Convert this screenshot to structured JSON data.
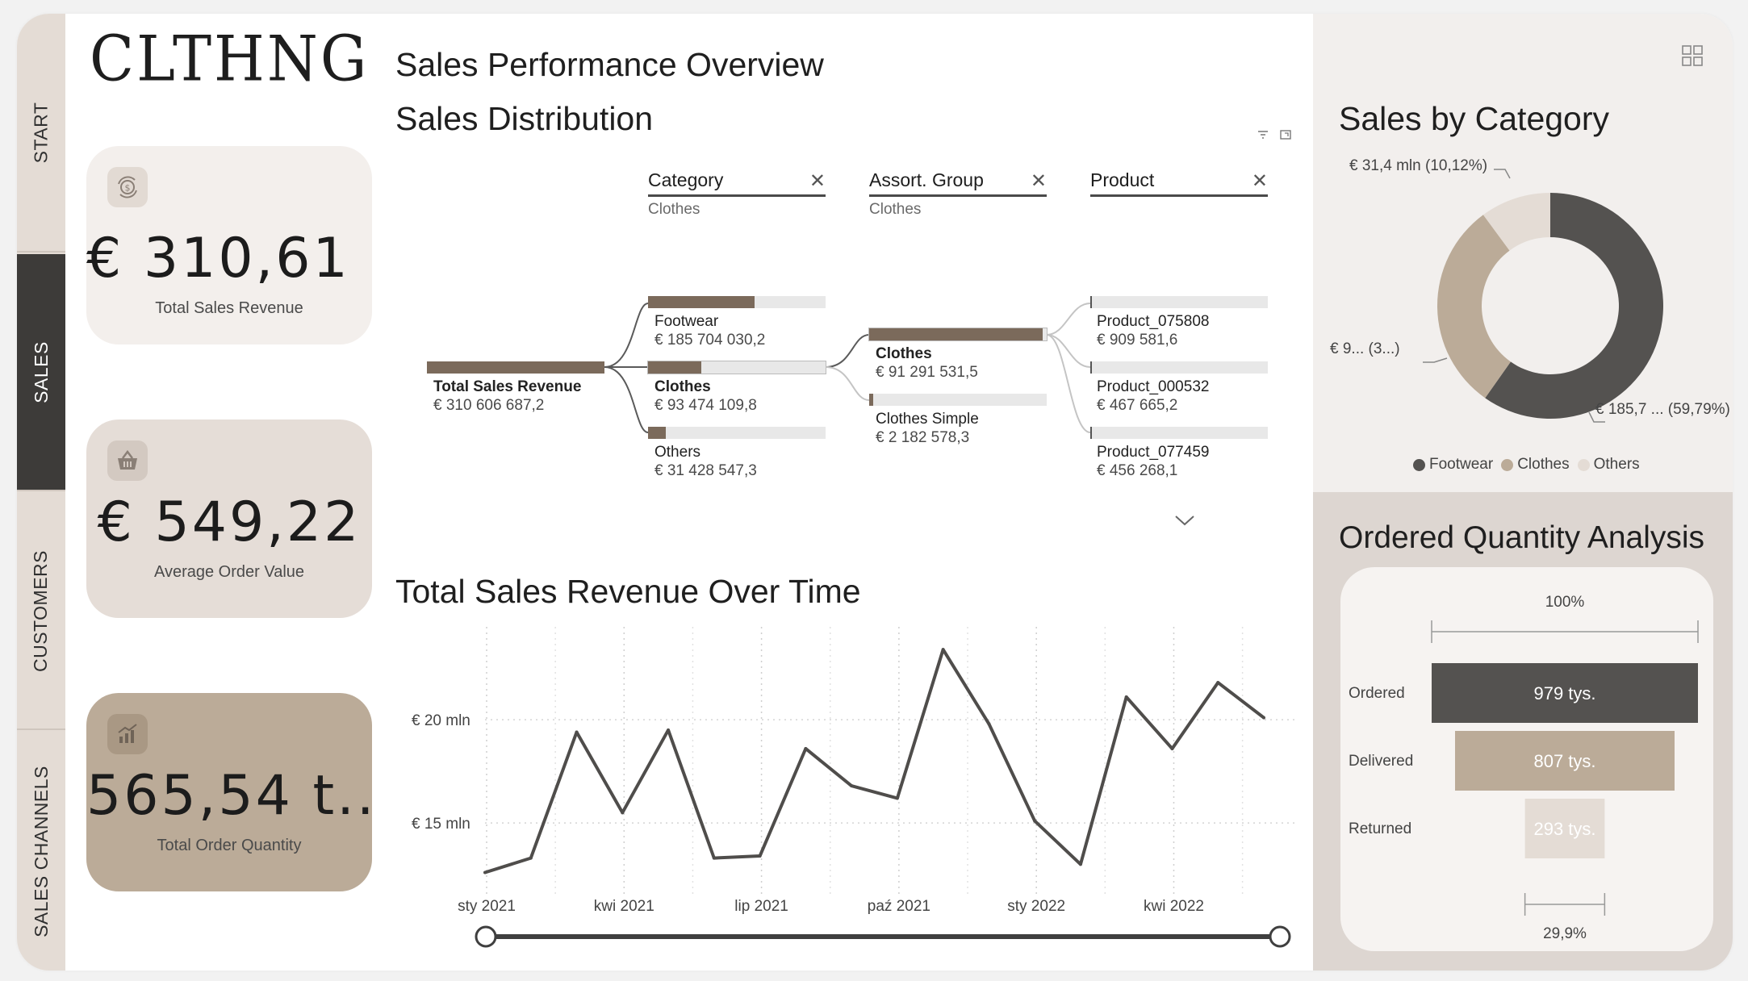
{
  "app": {
    "brand": "CLTHNG"
  },
  "nav": {
    "tabs": [
      {
        "label": "START",
        "active": false
      },
      {
        "label": "SALES",
        "active": true
      },
      {
        "label": "CUSTOMERS",
        "active": false
      },
      {
        "label": "SALES CHANNELS",
        "active": false
      }
    ]
  },
  "kpis": [
    {
      "icon": "money-cycle-icon",
      "value": "€ 310,61 ...",
      "label": "Total Sales Revenue",
      "bg": "#f3efec"
    },
    {
      "icon": "basket-icon",
      "value": "€ 549,22",
      "label": "Average Order Value",
      "bg": "#e5ddd7"
    },
    {
      "icon": "growth-chart-icon",
      "value": "565,54 t...",
      "label": "Total Order Quantity",
      "bg": "#bbab98"
    }
  ],
  "main": {
    "title": "Sales Performance Overview",
    "distribution_title": "Sales Distribution",
    "time_title": "Total Sales Revenue Over Time"
  },
  "tree": {
    "levels": [
      {
        "title": "Category",
        "selected": "Clothes"
      },
      {
        "title": "Assort. Group",
        "selected": "Clothes"
      },
      {
        "title": "Product",
        "selected": ""
      }
    ],
    "root": {
      "label": "Total Sales Revenue",
      "value": "€ 310 606 687,2",
      "share": 1.0
    },
    "categories": [
      {
        "label": "Footwear",
        "value": "€ 185 704 030,2",
        "share": 0.598
      },
      {
        "label": "Clothes",
        "value": "€ 93 474 109,8",
        "share": 0.301
      },
      {
        "label": "Others",
        "value": "€ 31 428 547,3",
        "share": 0.101
      }
    ],
    "groups": [
      {
        "label": "Clothes",
        "value": "€ 91 291 531,5",
        "share": 0.977
      },
      {
        "label": "Clothes Simple",
        "value": "€ 2 182 578,3",
        "share": 0.023
      }
    ],
    "products": [
      {
        "label": "Product_075808",
        "value": "€ 909 581,6",
        "share": 0.01
      },
      {
        "label": "Product_000532",
        "value": "€ 467 665,2",
        "share": 0.005
      },
      {
        "label": "Product_077459",
        "value": "€ 456 268,1",
        "share": 0.005
      }
    ]
  },
  "sales_by_category": {
    "title": "Sales by Category",
    "labels": {
      "others": "€ 31,4 mln (10,12%)",
      "clothes": "€ 9... (3...)",
      "footwear": "€ 185,7 ... (59,79%)"
    },
    "legend": [
      "Footwear",
      "Clothes",
      "Others"
    ]
  },
  "quantity": {
    "title": "Ordered Quantity Analysis",
    "top_pct": "100%",
    "bottom_pct": "29,9%",
    "rows": [
      {
        "label": "Ordered",
        "value": "979 tys."
      },
      {
        "label": "Delivered",
        "value": "807 tys."
      },
      {
        "label": "Returned",
        "value": "293 tys."
      }
    ]
  },
  "colors": {
    "dark": "#545250",
    "taupe": "#bbab98",
    "light": "#e4dcd5",
    "bar": "#7b6a5b"
  },
  "chart_data": [
    {
      "type": "pie",
      "title": "Sales by Category",
      "categories": [
        "Footwear",
        "Clothes",
        "Others"
      ],
      "values": [
        185.7,
        93.5,
        31.4
      ],
      "unit": "mln €",
      "colors": [
        "#545250",
        "#bbab98",
        "#e4dcd5"
      ],
      "legend": "bottom"
    },
    {
      "type": "line",
      "title": "Total Sales Revenue Over Time",
      "x": [
        "2021-01",
        "2021-02",
        "2021-03",
        "2021-04",
        "2021-05",
        "2021-06",
        "2021-07",
        "2021-08",
        "2021-09",
        "2021-10",
        "2021-11",
        "2021-12",
        "2022-01",
        "2022-02",
        "2022-03",
        "2022-04",
        "2022-05",
        "2022-06"
      ],
      "x_ticks": [
        "sty 2021",
        "kwi 2021",
        "lip 2021",
        "paź 2021",
        "sty 2022",
        "kwi 2022"
      ],
      "y_ticks": [
        "€ 15 mln",
        "€ 20 mln"
      ],
      "y_tick_values": [
        15,
        20
      ],
      "series": [
        {
          "values": [
            12.6,
            13.3,
            19.4,
            15.5,
            19.5,
            13.3,
            13.4,
            18.6,
            16.8,
            16.2,
            23.4,
            19.8,
            15.1,
            13.0,
            21.1,
            18.6,
            21.8,
            20.1
          ]
        }
      ],
      "ylim": [
        11.8,
        24.5
      ],
      "grid": true
    },
    {
      "type": "bar",
      "title": "Ordered Quantity Analysis",
      "categories": [
        "Ordered",
        "Delivered",
        "Returned"
      ],
      "values": [
        979,
        807,
        293
      ],
      "unit": "tys."
    }
  ]
}
